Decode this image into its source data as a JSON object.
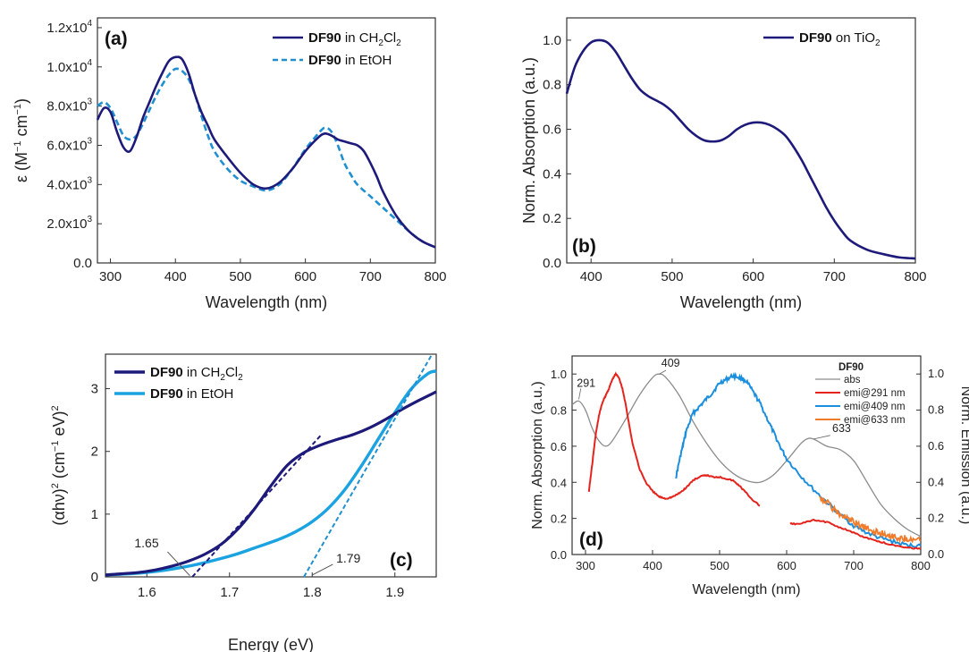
{
  "colors": {
    "navy": "#1d1a7a",
    "dash_blue": "#1f8fd0",
    "light_blue": "#1aa3e0",
    "red": "#e5231d",
    "blue_emi": "#1b8fde",
    "orange": "#f07b2b",
    "gray": "#8c8c8c"
  },
  "chart_data": [
    {
      "panel": "a",
      "type": "line",
      "panel_label": "(a)",
      "xlabel": "Wavelength (nm)",
      "ylabel_main": "ε (M",
      "ylabel_sup1": "−1",
      "ylabel_mid": " cm",
      "ylabel_sup2": "−1",
      "ylabel_end": ")",
      "xlim": [
        280,
        800
      ],
      "ylim": [
        0,
        12500
      ],
      "xticks": [
        300,
        400,
        500,
        600,
        700,
        800
      ],
      "xtick_labels": [
        "300",
        "400",
        "500",
        "600",
        "700",
        "800"
      ],
      "yticks": [
        0,
        2000,
        4000,
        6000,
        8000,
        10000,
        12000
      ],
      "ytick_labels": [
        {
          "mant": "0.0",
          "exp": ""
        },
        {
          "mant": "2.0x10",
          "exp": "3"
        },
        {
          "mant": "4.0x10",
          "exp": "3"
        },
        {
          "mant": "6.0x10",
          "exp": "3"
        },
        {
          "mant": "8.0x10",
          "exp": "3"
        },
        {
          "mant": "1.0x10",
          "exp": "4"
        },
        {
          "mant": "1.2x10",
          "exp": "4"
        }
      ],
      "legend_position": "top-right",
      "series": [
        {
          "name_bold": "DF90",
          "name_rest": " in CH",
          "name_sub1": "2",
          "name_mid": "Cl",
          "name_sub2": "2",
          "style": "solid",
          "color": "#1d1a7a",
          "x": [
            280,
            290,
            300,
            310,
            320,
            330,
            340,
            350,
            360,
            370,
            380,
            390,
            400,
            410,
            420,
            430,
            440,
            450,
            460,
            480,
            500,
            520,
            540,
            560,
            580,
            600,
            620,
            630,
            640,
            650,
            660,
            670,
            680,
            690,
            700,
            710,
            720,
            740,
            760,
            780,
            800
          ],
          "y": [
            7300,
            7900,
            7700,
            6700,
            5900,
            5700,
            6400,
            7400,
            8200,
            9000,
            9700,
            10300,
            10500,
            10400,
            9700,
            8600,
            7700,
            7000,
            6300,
            5400,
            4600,
            4000,
            3800,
            4100,
            4800,
            5700,
            6400,
            6600,
            6500,
            6300,
            6200,
            6100,
            6000,
            5700,
            5100,
            4400,
            3600,
            2400,
            1600,
            1100,
            800
          ]
        },
        {
          "name_bold": "DF90",
          "name_rest": " in EtOH",
          "style": "dashed",
          "color": "#1f8fd0",
          "x": [
            280,
            290,
            300,
            310,
            320,
            330,
            340,
            350,
            360,
            370,
            380,
            390,
            400,
            410,
            420,
            430,
            440,
            450,
            460,
            480,
            500,
            520,
            540,
            560,
            580,
            600,
            620,
            630,
            640,
            650,
            660,
            670,
            680,
            700,
            720,
            740,
            760,
            780,
            800
          ],
          "y": [
            8000,
            8200,
            7900,
            7200,
            6500,
            6300,
            6500,
            7100,
            7800,
            8500,
            9100,
            9600,
            9900,
            9800,
            9400,
            8600,
            7500,
            6500,
            5700,
            4800,
            4200,
            3900,
            3700,
            4000,
            4800,
            5800,
            6600,
            6900,
            6700,
            6000,
            5100,
            4500,
            4000,
            3400,
            2800,
            2200,
            1600,
            1100,
            800
          ]
        }
      ]
    },
    {
      "panel": "b",
      "type": "line",
      "panel_label": "(b)",
      "xlabel": "Wavelength (nm)",
      "ylabel": "Norm. Absorption (a.u.)",
      "xlim": [
        370,
        800
      ],
      "ylim": [
        0,
        1.1
      ],
      "xticks": [
        400,
        500,
        600,
        700,
        800
      ],
      "xtick_labels": [
        "400",
        "500",
        "600",
        "700",
        "800"
      ],
      "yticks": [
        0,
        0.2,
        0.4,
        0.6,
        0.8,
        1.0
      ],
      "ytick_labels": [
        "0.0",
        "0.2",
        "0.4",
        "0.6",
        "0.8",
        "1.0"
      ],
      "legend_position": "top-right",
      "series": [
        {
          "name_bold": "DF90",
          "name_rest": " on TiO",
          "name_sub1": "2",
          "style": "solid",
          "color": "#1d1a7a",
          "x": [
            370,
            380,
            390,
            400,
            410,
            420,
            430,
            440,
            450,
            460,
            470,
            480,
            490,
            500,
            510,
            520,
            530,
            540,
            550,
            560,
            570,
            580,
            590,
            600,
            610,
            620,
            630,
            640,
            650,
            660,
            670,
            680,
            690,
            700,
            710,
            720,
            740,
            760,
            780,
            800
          ],
          "y": [
            0.76,
            0.88,
            0.95,
            0.99,
            1.0,
            0.99,
            0.95,
            0.89,
            0.83,
            0.78,
            0.75,
            0.73,
            0.71,
            0.68,
            0.64,
            0.6,
            0.57,
            0.55,
            0.545,
            0.55,
            0.57,
            0.6,
            0.62,
            0.63,
            0.63,
            0.62,
            0.6,
            0.57,
            0.52,
            0.46,
            0.39,
            0.32,
            0.25,
            0.19,
            0.14,
            0.1,
            0.06,
            0.04,
            0.025,
            0.02
          ]
        }
      ]
    },
    {
      "panel": "c",
      "type": "line",
      "panel_label": "(c)",
      "xlabel": "Energy (eV)",
      "ylabel_main": "(αhν)",
      "ylabel_sup1": "2",
      "ylabel_mid": " (cm",
      "ylabel_sup2": "−1",
      "ylabel_end": " eV)",
      "ylabel_sup3": "2",
      "xlim": [
        1.55,
        1.95
      ],
      "ylim": [
        0,
        3.55
      ],
      "xticks": [
        1.6,
        1.7,
        1.8,
        1.9
      ],
      "xtick_labels": [
        "1.6",
        "1.7",
        "1.8",
        "1.9"
      ],
      "yticks": [
        0,
        1,
        2,
        3
      ],
      "ytick_labels": [
        "0",
        "1",
        "2",
        "3"
      ],
      "legend_position": "top-left",
      "annotations": [
        "1.65",
        "1.79"
      ],
      "series": [
        {
          "name_bold": "DF90",
          "name_rest": " in CH",
          "name_sub1": "2",
          "name_mid": "Cl",
          "name_sub2": "2",
          "style": "solid",
          "color": "#1d1a7a",
          "x": [
            1.55,
            1.57,
            1.59,
            1.61,
            1.63,
            1.65,
            1.67,
            1.69,
            1.71,
            1.73,
            1.75,
            1.77,
            1.79,
            1.81,
            1.83,
            1.85,
            1.87,
            1.89,
            1.91,
            1.93,
            1.95
          ],
          "y": [
            0.03,
            0.05,
            0.07,
            0.11,
            0.17,
            0.25,
            0.36,
            0.52,
            0.76,
            1.08,
            1.45,
            1.78,
            1.98,
            2.1,
            2.19,
            2.27,
            2.38,
            2.52,
            2.68,
            2.82,
            2.95
          ]
        },
        {
          "name_bold": "DF90",
          "name_rest": " in EtOH",
          "style": "solid",
          "color": "#1aa3e0",
          "x": [
            1.55,
            1.6,
            1.65,
            1.7,
            1.73,
            1.76,
            1.78,
            1.8,
            1.82,
            1.84,
            1.86,
            1.88,
            1.9,
            1.92,
            1.94,
            1.95
          ],
          "y": [
            0.03,
            0.07,
            0.17,
            0.33,
            0.46,
            0.6,
            0.72,
            0.88,
            1.1,
            1.4,
            1.78,
            2.2,
            2.62,
            3.0,
            3.24,
            3.28
          ]
        }
      ],
      "fits": [
        {
          "color": "#1d1a7a",
          "x": [
            1.655,
            1.81
          ],
          "y": [
            0.0,
            2.25
          ]
        },
        {
          "color": "#1f8fd0",
          "x": [
            1.79,
            1.945
          ],
          "y": [
            0.0,
            3.55
          ]
        }
      ]
    },
    {
      "panel": "d",
      "type": "line",
      "panel_label": "(d)",
      "xlabel": "Wavelength (nm)",
      "ylabel": "Norm. Absorption (a.u.)",
      "ylabel_right": "Norm. Emission (a.u.)",
      "xlim": [
        280,
        800
      ],
      "ylim": [
        0,
        1.1
      ],
      "xticks": [
        300,
        400,
        500,
        600,
        700,
        800
      ],
      "xtick_labels": [
        "300",
        "400",
        "500",
        "600",
        "700",
        "800"
      ],
      "yticks": [
        0,
        0.2,
        0.4,
        0.6,
        0.8,
        1.0
      ],
      "ytick_labels": [
        "0.0",
        "0.2",
        "0.4",
        "0.6",
        "0.8",
        "1.0"
      ],
      "legend_title": "DF90",
      "legend_position": "top-right",
      "annotations": [
        "291",
        "409",
        "633"
      ],
      "series": [
        {
          "name": "abs",
          "color": "#8c8c8c",
          "x": [
            280,
            290,
            300,
            310,
            320,
            330,
            340,
            360,
            380,
            400,
            410,
            420,
            440,
            460,
            480,
            500,
            520,
            540,
            560,
            580,
            600,
            620,
            630,
            640,
            660,
            680,
            700,
            720,
            740,
            760,
            780,
            800
          ],
          "y": [
            0.83,
            0.85,
            0.8,
            0.7,
            0.63,
            0.6,
            0.63,
            0.75,
            0.88,
            0.98,
            1.0,
            0.98,
            0.88,
            0.74,
            0.62,
            0.52,
            0.45,
            0.41,
            0.4,
            0.44,
            0.52,
            0.61,
            0.64,
            0.64,
            0.6,
            0.58,
            0.52,
            0.4,
            0.28,
            0.2,
            0.14,
            0.1
          ]
        },
        {
          "name": "emi@291 nm",
          "color": "#e5231d",
          "x": [
            305,
            310,
            315,
            320,
            325,
            330,
            335,
            340,
            345,
            350,
            355,
            360,
            365,
            370,
            380,
            390,
            400,
            410,
            420,
            430,
            440,
            450,
            460,
            470,
            480,
            490,
            500,
            510,
            520,
            530,
            540,
            550,
            560
          ],
          "y": [
            0.35,
            0.5,
            0.66,
            0.77,
            0.84,
            0.88,
            0.92,
            0.97,
            1.0,
            0.98,
            0.92,
            0.83,
            0.72,
            0.62,
            0.48,
            0.4,
            0.35,
            0.32,
            0.31,
            0.32,
            0.34,
            0.37,
            0.41,
            0.43,
            0.44,
            0.43,
            0.43,
            0.42,
            0.41,
            0.38,
            0.34,
            0.3,
            0.27
          ]
        },
        {
          "name": "emi@291 nm (tail)",
          "color": "#e5231d",
          "x": [
            605,
            620,
            640,
            660,
            680,
            700,
            720,
            740,
            760,
            780,
            800
          ],
          "y": [
            0.17,
            0.17,
            0.19,
            0.18,
            0.15,
            0.12,
            0.09,
            0.07,
            0.05,
            0.04,
            0.03
          ]
        },
        {
          "name": "emi@409 nm",
          "color": "#1b8fde",
          "x": [
            435,
            440,
            445,
            450,
            460,
            470,
            480,
            490,
            500,
            510,
            520,
            530,
            540,
            550,
            560,
            570,
            580,
            590,
            600,
            620,
            640,
            660,
            680,
            700,
            720,
            740,
            760,
            780,
            800
          ],
          "y": [
            0.43,
            0.52,
            0.6,
            0.68,
            0.78,
            0.82,
            0.86,
            0.9,
            0.95,
            0.97,
            0.99,
            0.98,
            0.96,
            0.9,
            0.84,
            0.76,
            0.68,
            0.6,
            0.53,
            0.44,
            0.36,
            0.29,
            0.22,
            0.16,
            0.12,
            0.09,
            0.07,
            0.05,
            0.05
          ]
        },
        {
          "name": "emi@633 nm",
          "color": "#f07b2b",
          "x": [
            650,
            660,
            670,
            680,
            690,
            700,
            710,
            720,
            730,
            740,
            750,
            760,
            770,
            780,
            790,
            800
          ],
          "y": [
            0.32,
            0.29,
            0.25,
            0.22,
            0.2,
            0.18,
            0.16,
            0.14,
            0.13,
            0.12,
            0.11,
            0.1,
            0.09,
            0.09,
            0.08,
            0.08
          ]
        }
      ]
    }
  ]
}
